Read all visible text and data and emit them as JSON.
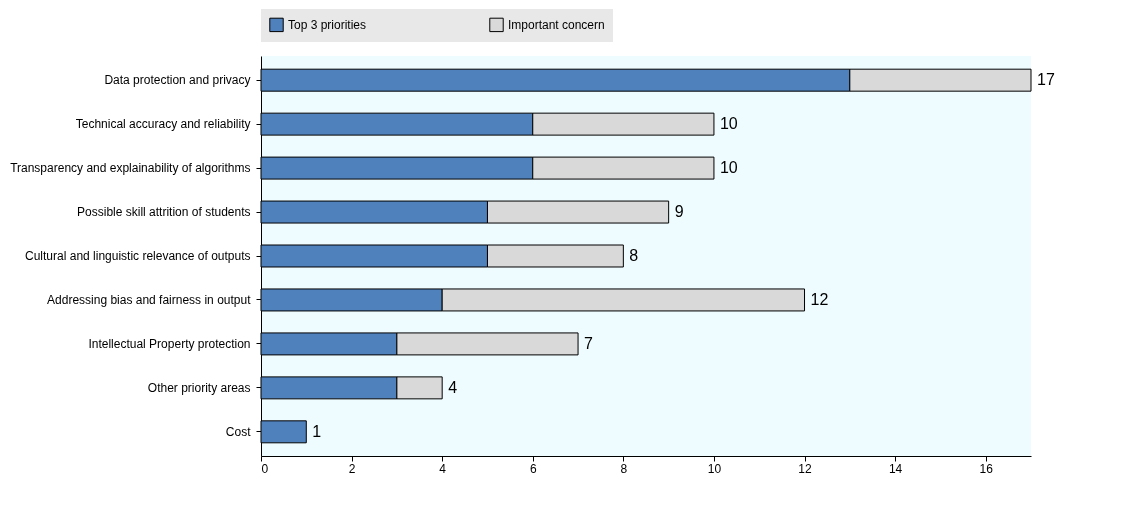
{
  "chart_data": {
    "type": "bar",
    "orientation": "horizontal",
    "stacked": true,
    "legend": "top",
    "grid": false,
    "categories": [
      "Data protection and privacy",
      "Technical accuracy and reliability",
      "Transparency and explainability of algorithms",
      "Possible skill attrition of students",
      "Cultural and linguistic relevance of outputs",
      "Addressing bias and fairness in output",
      "Intellectual Property protection",
      "Other priority areas",
      "Cost"
    ],
    "series": [
      {
        "name": "Top 3 priorities",
        "color": "#4f81bd",
        "values": [
          13,
          6,
          6,
          5,
          5,
          4,
          3,
          3,
          1
        ]
      },
      {
        "name": "Important concern",
        "color": "#d9d9d9",
        "values": [
          4,
          4,
          4,
          4,
          3,
          8,
          4,
          1,
          null
        ]
      }
    ],
    "totals": [
      "17",
      "10",
      "10",
      "9",
      "8",
      "12",
      "7",
      "4",
      "1"
    ],
    "xlim": [
      0,
      17
    ],
    "xticks": [
      0,
      2,
      4,
      6,
      8,
      10,
      12,
      14,
      16
    ]
  }
}
